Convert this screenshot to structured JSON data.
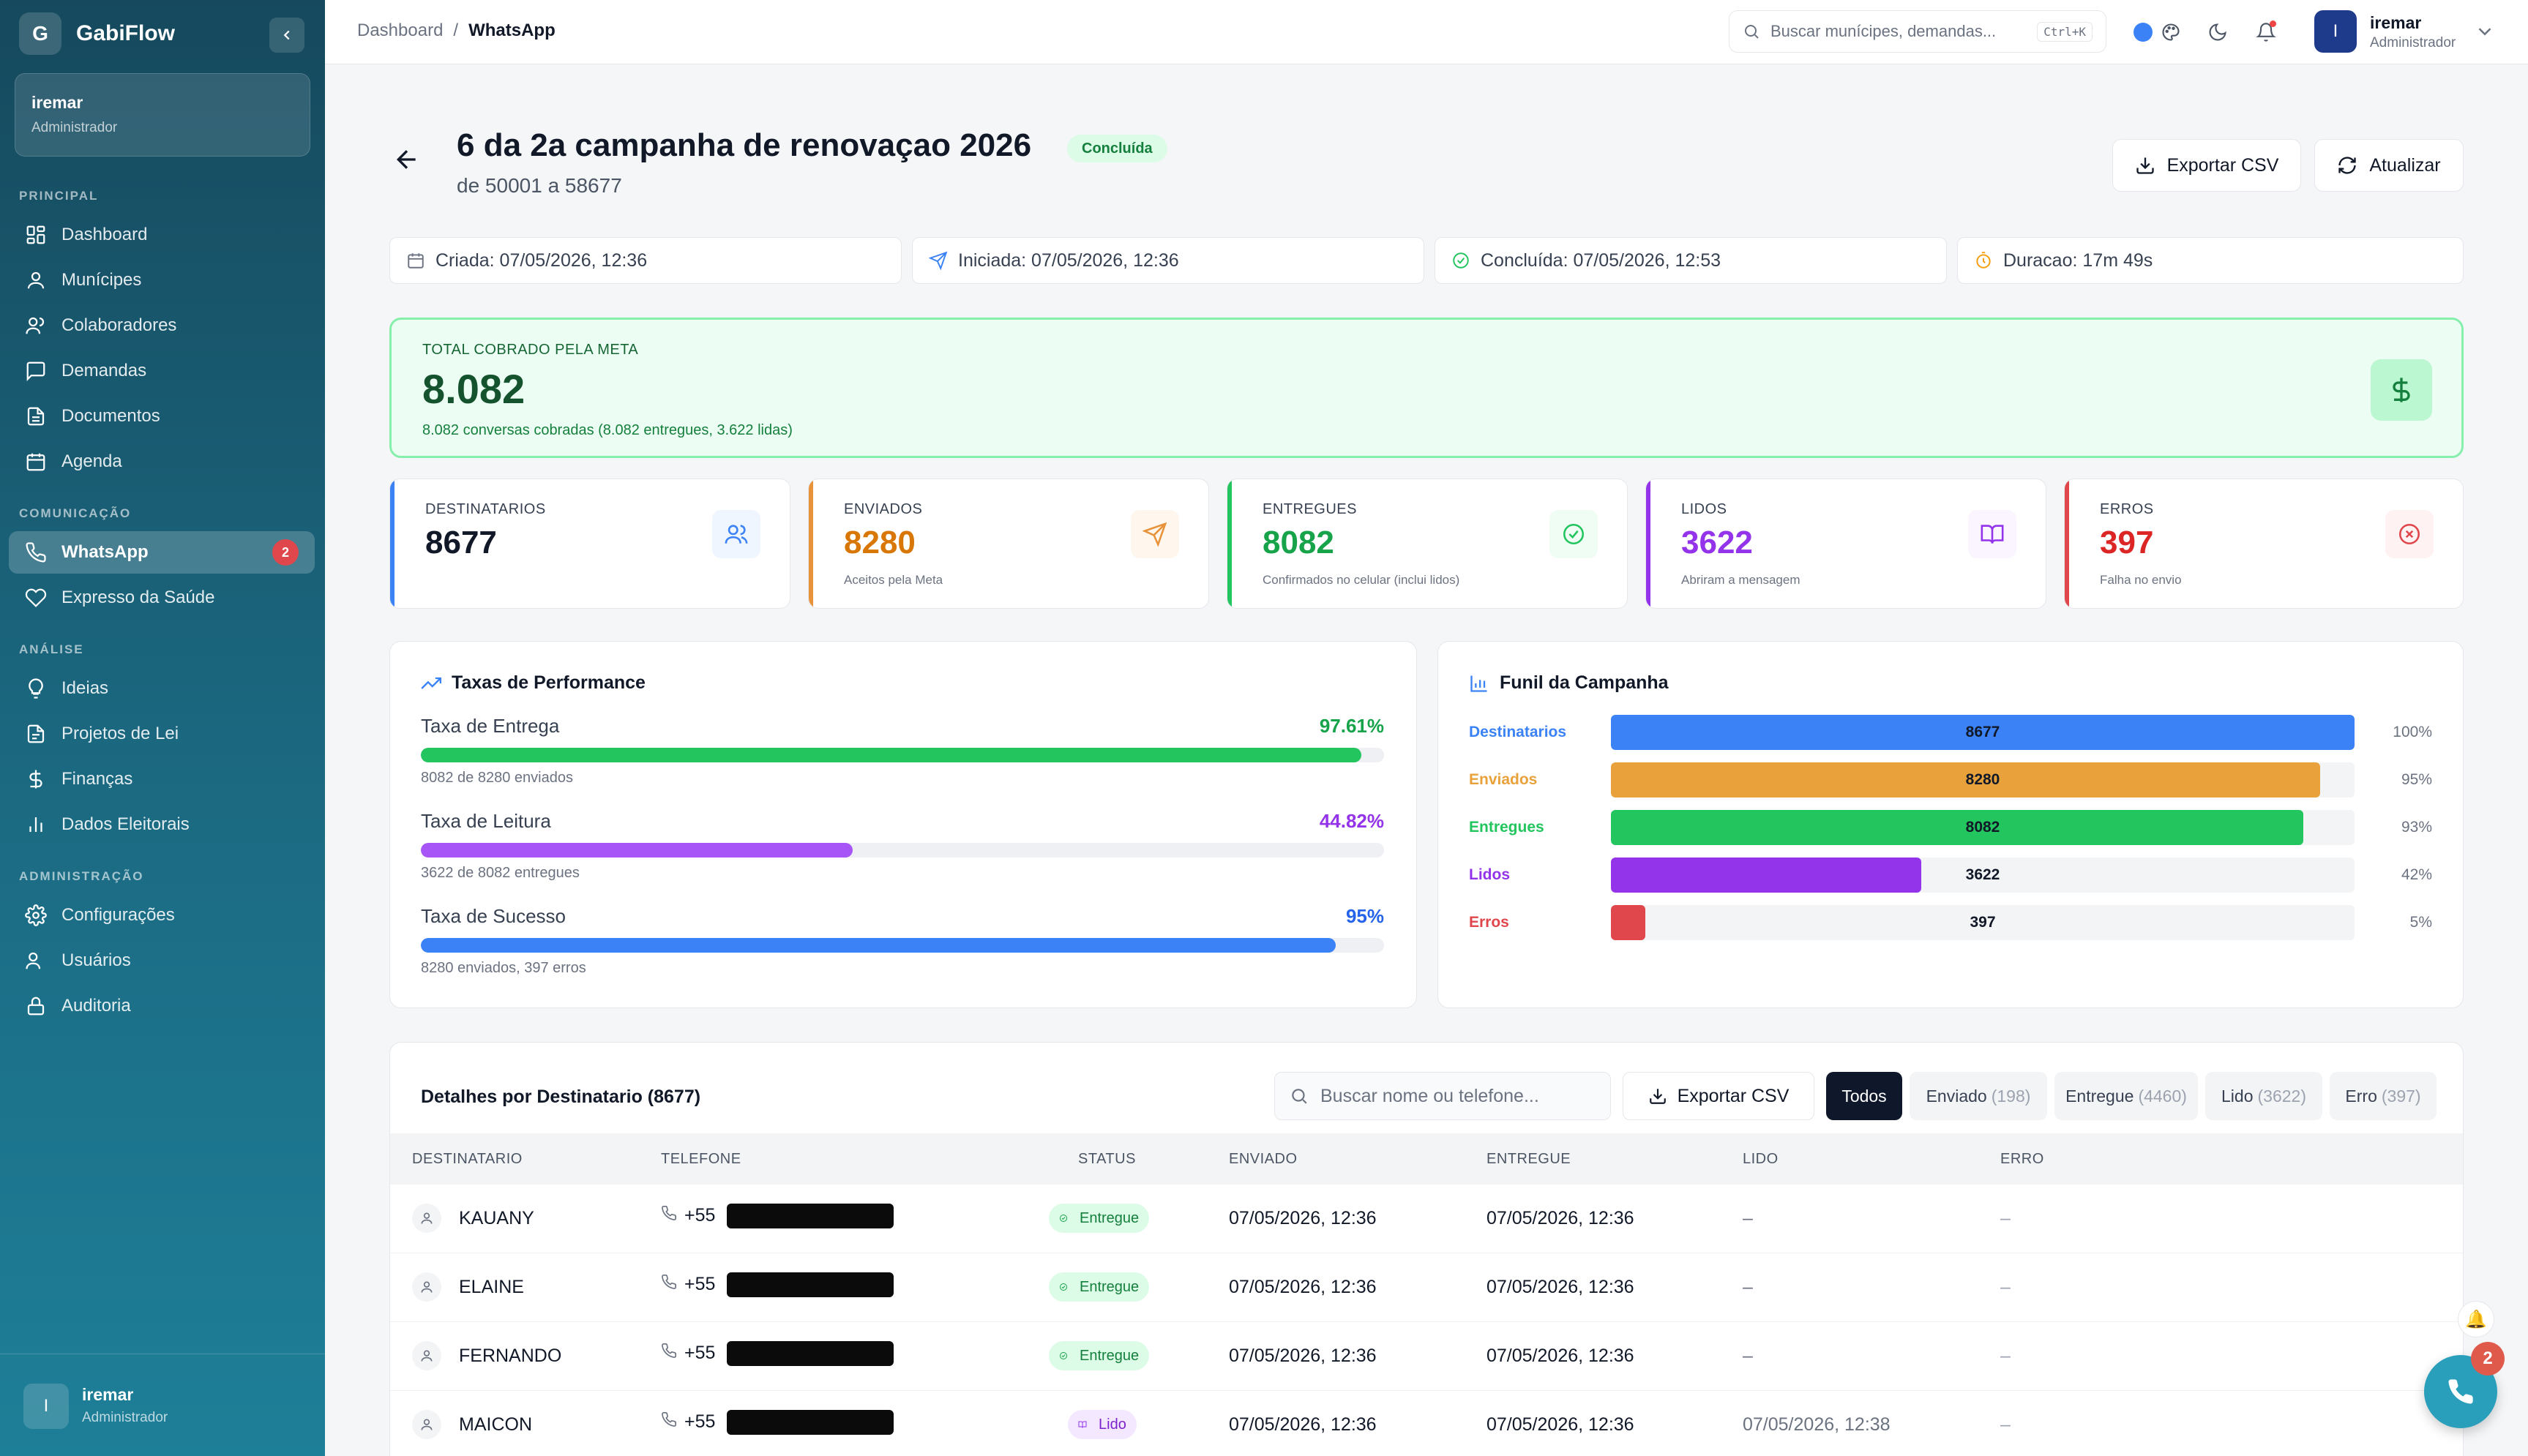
{
  "app": {
    "name": "GabiFlow",
    "logo_letter": "G"
  },
  "sidebar": {
    "user": {
      "name": "iremar",
      "role": "Administrador"
    },
    "sections": {
      "principal": "PRINCIPAL",
      "comunicacao": "COMUNICAÇÃO",
      "analise": "ANÁLISE",
      "administracao": "ADMINISTRAÇÃO"
    },
    "items": {
      "dashboard": "Dashboard",
      "municipes": "Munícipes",
      "colaboradores": "Colaboradores",
      "demandas": "Demandas",
      "documentos": "Documentos",
      "agenda": "Agenda",
      "whatsapp": "WhatsApp",
      "whatsapp_badge": "2",
      "expresso": "Expresso da Saúde",
      "ideias": "Ideias",
      "projetos": "Projetos de Lei",
      "financas": "Finanças",
      "dados": "Dados Eleitorais",
      "configuracoes": "Configurações",
      "usuarios": "Usuários",
      "auditoria": "Auditoria"
    },
    "footer": {
      "avatar": "I",
      "name": "iremar",
      "role": "Administrador"
    }
  },
  "topbar": {
    "breadcrumb": {
      "root": "Dashboard",
      "separator": "/",
      "current": "WhatsApp"
    },
    "search": {
      "placeholder": "Buscar munícipes, demandas...",
      "shortcut": "Ctrl+K"
    },
    "user": {
      "avatar": "I",
      "name": "iremar",
      "role": "Administrador"
    }
  },
  "campaign": {
    "title": "6 da 2a campanha de renovaçao 2026",
    "status": "Concluída",
    "subtitle": "de 50001 a 58677",
    "export_label": "Exportar CSV",
    "refresh_label": "Atualizar",
    "info": {
      "created": "Criada: 07/05/2026, 12:36",
      "started": "Iniciada: 07/05/2026, 12:36",
      "completed": "Concluída: 07/05/2026, 12:53",
      "duration": "Duracao: 17m 49s"
    }
  },
  "total": {
    "label": "TOTAL COBRADO PELA META",
    "value": "8.082",
    "sub": "8.082 conversas cobradas (8.082 entregues, 3.622 lidas)"
  },
  "stats": [
    {
      "label": "DESTINATARIOS",
      "value": "8677",
      "sub": "",
      "color": "#3b82f6"
    },
    {
      "label": "ENVIADOS",
      "value": "8280",
      "sub": "Aceitos pela Meta",
      "color": "#e8923a"
    },
    {
      "label": "ENTREGUES",
      "value": "8082",
      "sub": "Confirmados no celular (inclui lidos)",
      "color": "#22c55e"
    },
    {
      "label": "LIDOS",
      "value": "3622",
      "sub": "Abriram a mensagem",
      "color": "#9333ea"
    },
    {
      "label": "ERROS",
      "value": "397",
      "sub": "Falha no envio",
      "color": "#e0474c"
    }
  ],
  "performance": {
    "title": "Taxas de Performance",
    "rates": [
      {
        "label": "Taxa de Entrega",
        "pct": "97.61%",
        "value": 0.9761,
        "sub": "8082 de 8280 enviados",
        "color": "#22c55e"
      },
      {
        "label": "Taxa de Leitura",
        "pct": "44.82%",
        "value": 0.4482,
        "sub": "3622 de 8082 entregues",
        "color": "#a855f7"
      },
      {
        "label": "Taxa de Sucesso",
        "pct": "95%",
        "value": 0.95,
        "sub": "8280 enviados, 397 erros",
        "color": "#3b82f6"
      }
    ]
  },
  "funnel": {
    "title": "Funil da Campanha",
    "rows": [
      {
        "label": "Destinatarios",
        "value": 8677,
        "display": "8677",
        "pct": "100%",
        "fraction": 1.0,
        "color": "#3b82f6"
      },
      {
        "label": "Enviados",
        "value": 8280,
        "display": "8280",
        "pct": "95%",
        "fraction": 0.954,
        "color": "#e9a23b"
      },
      {
        "label": "Entregues",
        "value": 8082,
        "display": "8082",
        "pct": "93%",
        "fraction": 0.931,
        "color": "#22c55e"
      },
      {
        "label": "Lidos",
        "value": 3622,
        "display": "3622",
        "pct": "42%",
        "fraction": 0.417,
        "color": "#9333ea"
      },
      {
        "label": "Erros",
        "value": 397,
        "display": "397",
        "pct": "5%",
        "fraction": 0.046,
        "color": "#e0474c"
      }
    ]
  },
  "details": {
    "title": "Detalhes por Destinatario (8677)",
    "search_placeholder": "Buscar nome ou telefone...",
    "export_label": "Exportar CSV",
    "filters": [
      {
        "label": "Todos",
        "count": ""
      },
      {
        "label": "Enviado",
        "count": "(198)"
      },
      {
        "label": "Entregue",
        "count": "(4460)"
      },
      {
        "label": "Lido",
        "count": "(3622)"
      },
      {
        "label": "Erro",
        "count": "(397)"
      }
    ],
    "columns": [
      "DESTINATARIO",
      "TELEFONE",
      "STATUS",
      "ENVIADO",
      "ENTREGUE",
      "LIDO",
      "ERRO"
    ],
    "rows": [
      {
        "name": "KAUANY",
        "phone_prefix": "+55",
        "status": "Entregue",
        "sent": "07/05/2026, 12:36",
        "delivered": "07/05/2026, 12:36",
        "read": "–",
        "error": "–"
      },
      {
        "name": "ELAINE",
        "phone_prefix": "+55",
        "status": "Entregue",
        "sent": "07/05/2026, 12:36",
        "delivered": "07/05/2026, 12:36",
        "read": "–",
        "error": "–"
      },
      {
        "name": "FERNANDO",
        "phone_prefix": "+55",
        "status": "Entregue",
        "sent": "07/05/2026, 12:36",
        "delivered": "07/05/2026, 12:36",
        "read": "–",
        "error": "–"
      },
      {
        "name": "MAICON",
        "phone_prefix": "+55",
        "status": "Lido",
        "sent": "07/05/2026, 12:36",
        "delivered": "07/05/2026, 12:36",
        "read": "07/05/2026, 12:38",
        "error": "–"
      }
    ]
  },
  "fab": {
    "badge": "2"
  }
}
